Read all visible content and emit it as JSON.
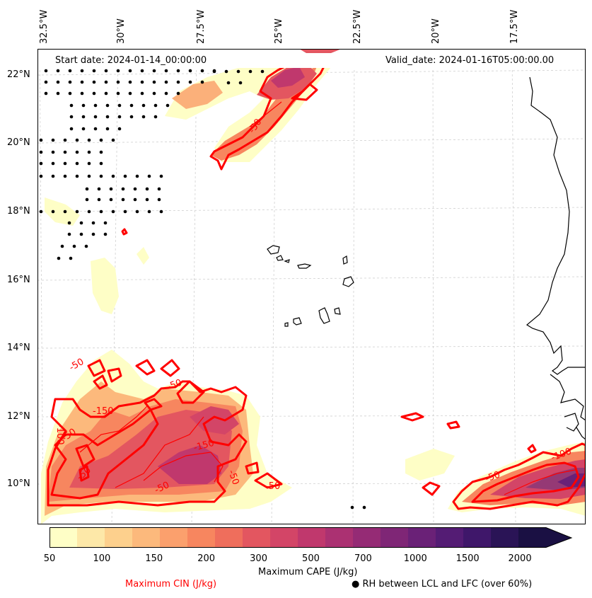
{
  "map": {
    "start_date": "Start date: 2024-01-14_00:00:00",
    "valid_date": "Valid_date: 2024-01-16T05:00:00.00",
    "longitudes": [
      "32.5°W",
      "30°W",
      "27.5°W",
      "25°W",
      "22.5°W",
      "20°W",
      "17.5°W"
    ],
    "latitudes": [
      "22°N",
      "20°N",
      "18°N",
      "16°N",
      "14°N",
      "12°N",
      "10°N"
    ],
    "cin_contour_labels": [
      "-50",
      "-50",
      "-50",
      "-100",
      "-150",
      "-150",
      "-50",
      "-50",
      "-50",
      "-50",
      "-50",
      "-50",
      "-100"
    ]
  },
  "colorbar": {
    "ticks": [
      "50",
      "100",
      "150",
      "200",
      "300",
      "500",
      "700",
      "1000",
      "1500",
      "2000"
    ],
    "colors": [
      "#fefec6",
      "#fde8a8",
      "#fdd08d",
      "#fcb97c",
      "#fba06d",
      "#f7865f",
      "#ef6e5c",
      "#e35660",
      "#d34567",
      "#c0386d",
      "#ab3172",
      "#952b75",
      "#7f2676",
      "#6a2177",
      "#541c74",
      "#3f176a",
      "#2a1456",
      "#1a1043"
    ],
    "label": "Maximum CAPE (J/kg)"
  },
  "legend": {
    "cin_label": "Maximum CIN (J/kg)",
    "cin_color": "#ff0000",
    "rh_symbol": "●",
    "rh_label": "RH between LCL and LFC (over 60%)"
  }
}
